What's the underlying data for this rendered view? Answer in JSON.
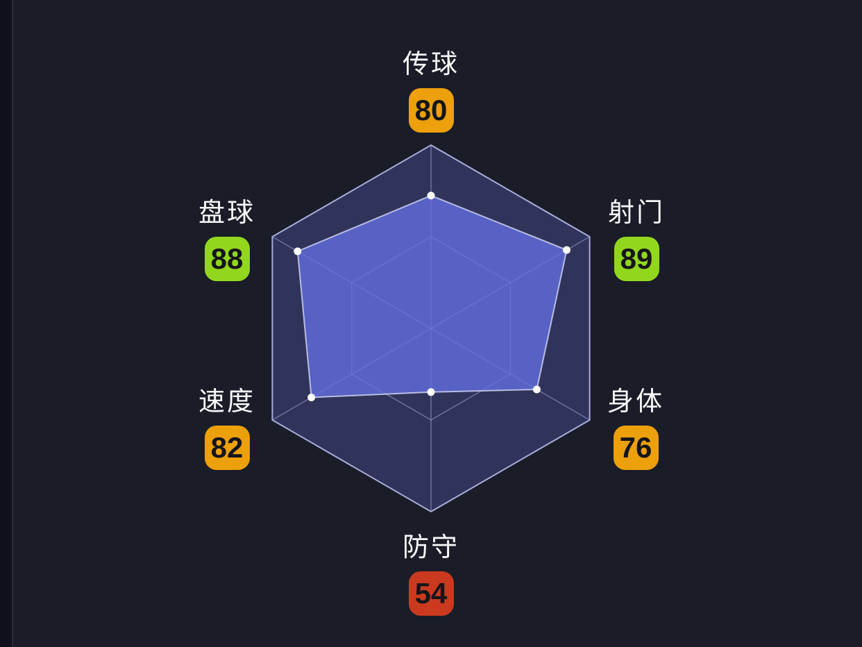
{
  "page": {
    "background": "#1A1C28",
    "left_strip_color": "#0F1019",
    "left_strip_divider_color": "#2B2C3D"
  },
  "chart_data": {
    "type": "radar",
    "categories": [
      "传球",
      "射门",
      "身体",
      "防守",
      "速度",
      "盘球"
    ],
    "values": [
      80,
      89,
      76,
      54,
      82,
      88
    ],
    "value_range": [
      30,
      99
    ],
    "grid_levels": 2,
    "legend": "none",
    "start_axis": "top",
    "direction": "clockwise",
    "stats": [
      {
        "label": "传球",
        "value": 80,
        "badge_color": "#ECA00C"
      },
      {
        "label": "射门",
        "value": 89,
        "badge_color": "#92D71E"
      },
      {
        "label": "身体",
        "value": 76,
        "badge_color": "#ECA00C"
      },
      {
        "label": "防守",
        "value": 54,
        "badge_color": "#CB3A1E"
      },
      {
        "label": "速度",
        "value": 82,
        "badge_color": "#ECA00C"
      },
      {
        "label": "盘球",
        "value": 88,
        "badge_color": "#92D71E"
      }
    ],
    "colors": {
      "grid_fill": "#31345A",
      "grid_line": "rgba(168,175,226,0.5)",
      "grid_border": "rgba(182,188,236,0.9)",
      "series_fill": "#6470E2",
      "series_fill_opacity": 0.78,
      "series_stroke": "rgba(212,217,248,0.8)",
      "dot_color": "#FFFFFF",
      "label_color": "#FAFAFB",
      "badge_text_color": "#15151A"
    }
  }
}
